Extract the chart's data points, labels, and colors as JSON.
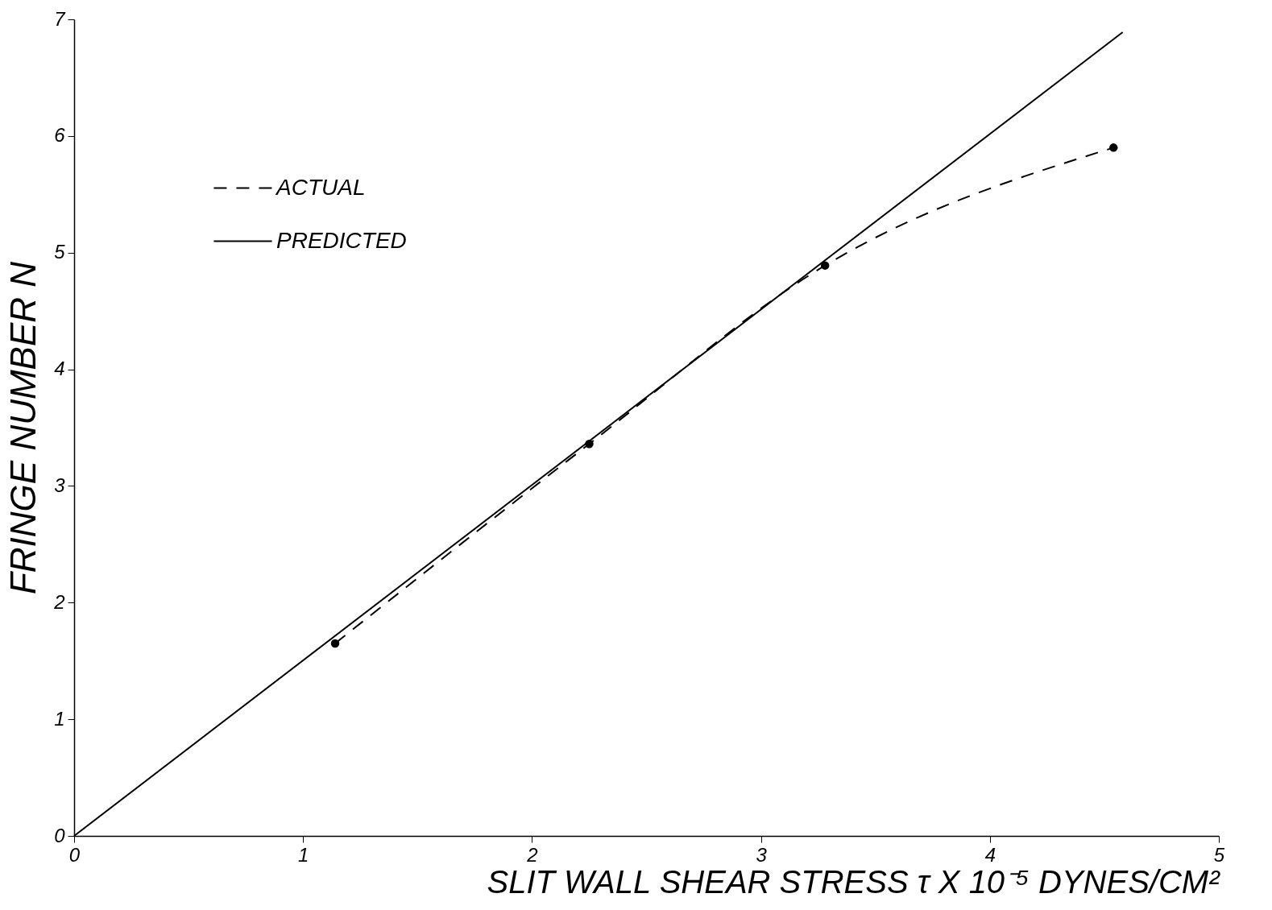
{
  "chart_data": {
    "type": "line",
    "xlabel": "SLIT WALL SHEAR STRESS τ X 10⁻⁵ DYNES/CM²",
    "ylabel": "FRINGE NUMBER N",
    "xlim": [
      0,
      5
    ],
    "xticks": [
      0,
      1,
      2,
      3,
      4,
      5
    ],
    "ylim": [
      0,
      7
    ],
    "yticks": [
      0,
      1,
      2,
      3,
      4,
      5,
      6,
      7
    ],
    "grid": false,
    "legend": "top left",
    "series": [
      {
        "name": "ACTUAL",
        "color": "#000000",
        "line_style": "dashed",
        "marker": "circle",
        "x": [
          1.14,
          2.25,
          3.28,
          4.54
        ],
        "values": [
          1.65,
          3.36,
          4.89,
          5.9
        ]
      },
      {
        "name": "PREDICTED",
        "color": "#000000",
        "line_style": "solid",
        "x": [
          0,
          4.58
        ],
        "values": [
          0,
          6.89
        ]
      }
    ]
  }
}
